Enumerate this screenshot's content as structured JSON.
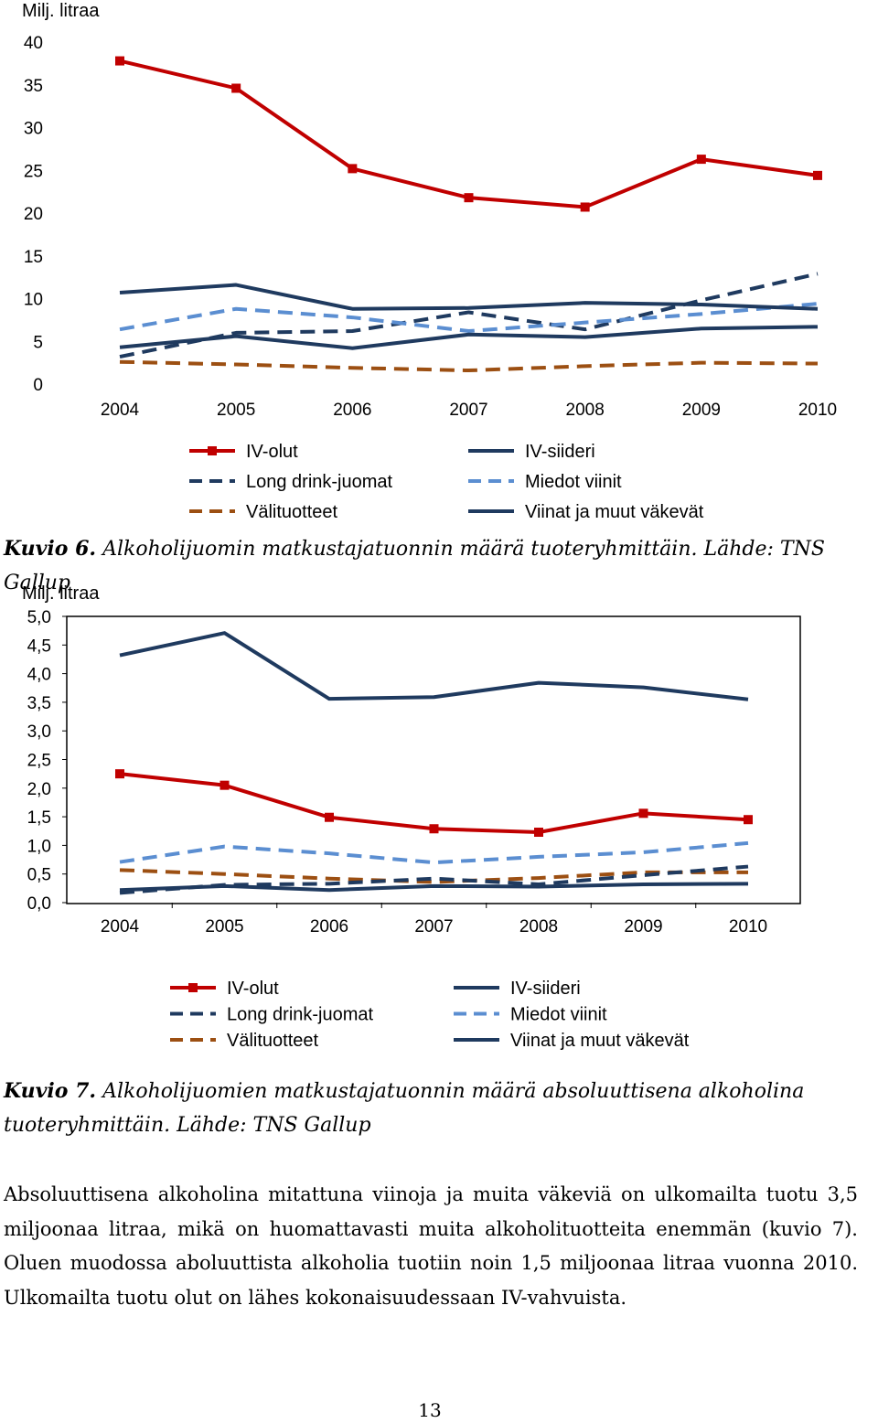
{
  "charts": [
    {
      "figure_label": "Kuvio 6.",
      "caption": "Alkoholijuomin matkustajatuonnin määrä tuoteryhmittäin. Lähde: TNS Gallup",
      "unit_label": "Milj. litraa"
    },
    {
      "figure_label": "Kuvio 7.",
      "caption": "Alkoholijuomien matkustajatuonnin määrä absoluuttisena alkoholina tuoteryhmittäin. Lähde: TNS Gallup",
      "unit_label": "Milj. litraa"
    }
  ],
  "body_text": "Absoluuttisena alkoholina mitattuna viinoja ja muita väkeviä on ulkomailta tuotu 3,5 miljoonaa litraa, mikä on huomattavasti muita alkoholituotteita enemmän (kuvio 7). Oluen muodossa aboluuttista alkoholia tuotiin noin 1,5 miljoonaa litraa vuonna 2010. Ulkomailta tuotu olut on lähes kokonaisuudessaan IV-vahvuista.",
  "page_number": "13",
  "chart_data": [
    {
      "type": "line",
      "ylabel": "Milj. litraa",
      "ylim": [
        0,
        40
      ],
      "yticks": [
        "0",
        "5",
        "10",
        "15",
        "20",
        "25",
        "30",
        "35",
        "40"
      ],
      "categories": [
        "2004",
        "2005",
        "2006",
        "2007",
        "2008",
        "2009",
        "2010"
      ],
      "grid": false,
      "legend_position": "bottom",
      "series": [
        {
          "name": "IV-olut",
          "color": "#C00000",
          "style": "solid-marker",
          "values": [
            37.8,
            34.6,
            25.2,
            21.8,
            20.7,
            26.3,
            24.4
          ]
        },
        {
          "name": "IV-siideri",
          "color": "#1F3A5F",
          "style": "solid",
          "values": [
            4.3,
            5.6,
            4.2,
            5.8,
            5.5,
            6.5,
            6.7
          ]
        },
        {
          "name": "Long drink-juomat",
          "color": "#1F3A5F",
          "style": "dashed",
          "values": [
            3.2,
            6.0,
            6.2,
            8.4,
            6.4,
            9.8,
            12.9
          ]
        },
        {
          "name": "Miedot viinit",
          "color": "#5B8ED1",
          "style": "dashed",
          "values": [
            6.4,
            8.8,
            7.8,
            6.2,
            7.2,
            8.2,
            9.4
          ]
        },
        {
          "name": "Välituotteet",
          "color": "#9C4F12",
          "style": "dashed",
          "values": [
            2.6,
            2.3,
            1.9,
            1.6,
            2.1,
            2.5,
            2.4
          ]
        },
        {
          "name": "Viinat ja muut väkevät",
          "color": "#1F3A5F",
          "style": "solid",
          "values": [
            10.7,
            11.6,
            8.8,
            8.9,
            9.5,
            9.3,
            8.8
          ]
        }
      ]
    },
    {
      "type": "line",
      "ylabel": "Milj. litraa",
      "ylim": [
        0,
        5
      ],
      "yticks": [
        "0,0",
        "0,5",
        "1,0",
        "1,5",
        "2,0",
        "2,5",
        "3,0",
        "3,5",
        "4,0",
        "4,5",
        "5,0"
      ],
      "categories": [
        "2004",
        "2005",
        "2006",
        "2007",
        "2008",
        "2009",
        "2010"
      ],
      "grid": false,
      "legend_position": "bottom",
      "series": [
        {
          "name": "IV-olut",
          "color": "#C00000",
          "style": "solid-marker",
          "values": [
            2.25,
            2.05,
            1.49,
            1.29,
            1.23,
            1.56,
            1.45
          ]
        },
        {
          "name": "IV-siideri",
          "color": "#1F3A5F",
          "style": "solid",
          "values": [
            0.22,
            0.29,
            0.22,
            0.29,
            0.28,
            0.32,
            0.33
          ]
        },
        {
          "name": "Long drink-juomat",
          "color": "#1F3A5F",
          "style": "dashed",
          "values": [
            0.17,
            0.31,
            0.33,
            0.42,
            0.32,
            0.48,
            0.63
          ]
        },
        {
          "name": "Miedot viinit",
          "color": "#5B8ED1",
          "style": "dashed",
          "values": [
            0.71,
            0.98,
            0.86,
            0.7,
            0.8,
            0.88,
            1.04
          ]
        },
        {
          "name": "Välituotteet",
          "color": "#9C4F12",
          "style": "dashed",
          "values": [
            0.57,
            0.5,
            0.42,
            0.36,
            0.43,
            0.53,
            0.53
          ]
        },
        {
          "name": "Viinat ja muut väkevät",
          "color": "#1F3A5F",
          "style": "solid",
          "values": [
            4.32,
            4.71,
            3.56,
            3.59,
            3.84,
            3.76,
            3.55
          ]
        }
      ]
    }
  ]
}
